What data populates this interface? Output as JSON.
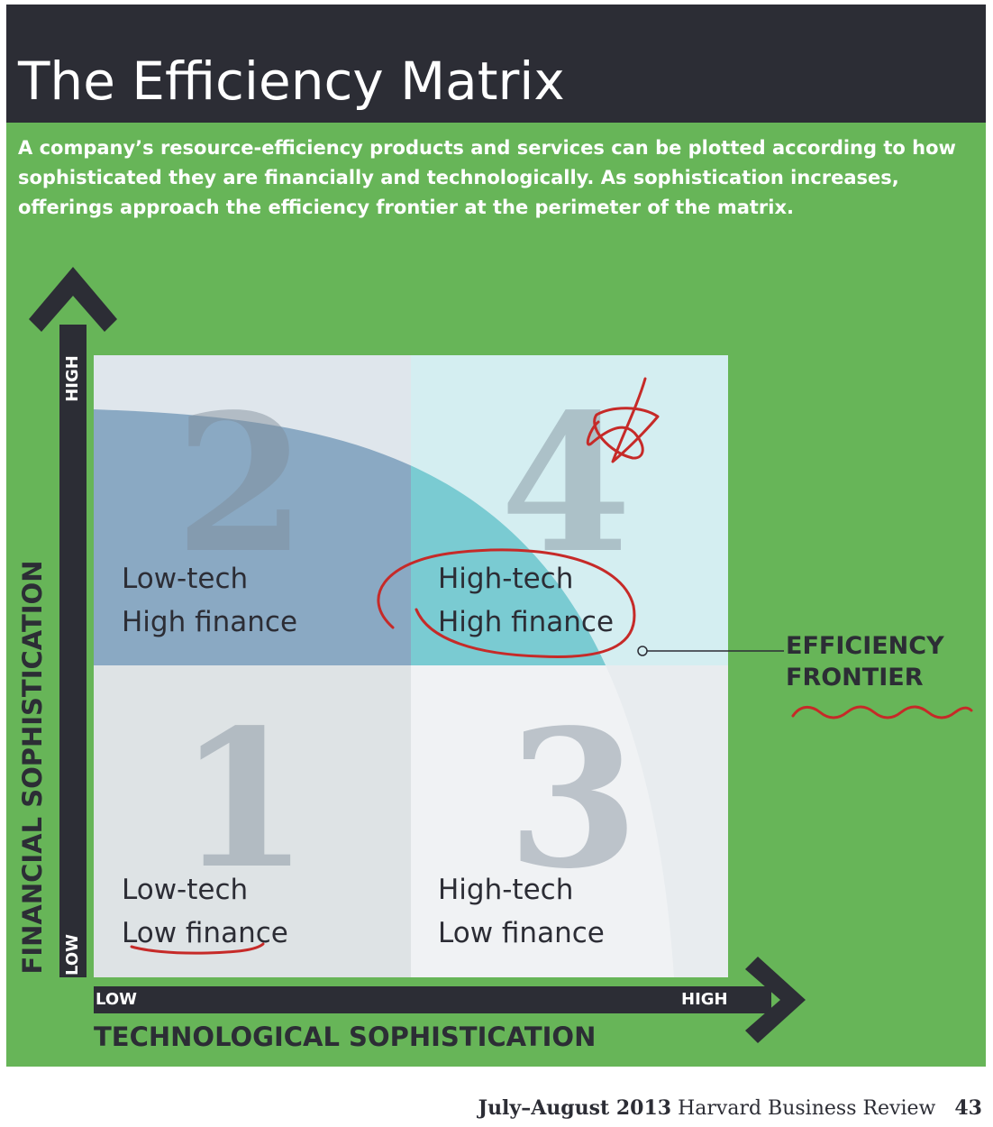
{
  "header": {
    "title": "The Efficiency Matrix"
  },
  "intro": "A company’s resource-efficiency products and services can be plotted according to how sophisticated they are financially and technologically. As sophistication increases, offerings approach the efficiency frontier at the perimeter of the matrix.",
  "quadrants": [
    {
      "number": "1",
      "tech": "Low-tech",
      "finance": "Low finance"
    },
    {
      "number": "2",
      "tech": "Low-tech",
      "finance": "High finance"
    },
    {
      "number": "3",
      "tech": "High-tech",
      "finance": "Low finance"
    },
    {
      "number": "4",
      "tech": "High-tech",
      "finance": "High finance"
    }
  ],
  "axes": {
    "y": {
      "title": "FINANCIAL SOPHISTICATION",
      "low": "LOW",
      "high": "HIGH"
    },
    "x": {
      "title": "TECHNOLOGICAL SOPHISTICATION",
      "low": "LOW",
      "high": "HIGH"
    }
  },
  "frontier": {
    "line1": "EFFICIENCY",
    "line2": "FRONTIER"
  },
  "footer": {
    "date": "July–August 2013",
    "publication": "Harvard Business Review",
    "page": "43"
  },
  "colors": {
    "background": "#67b558",
    "title_bar": "#2c2d35",
    "arrow": "#2c2d35",
    "quadrant_1": "#cdd4d8",
    "quadrant_2": "#dfe6ec",
    "quadrant_3": "#e8ecef",
    "quadrant_4": "#d4eef1",
    "frontier_low_tech": "#8aa9c3",
    "frontier_high_tech": "#7acbd2",
    "annotation": "#c62a28"
  }
}
